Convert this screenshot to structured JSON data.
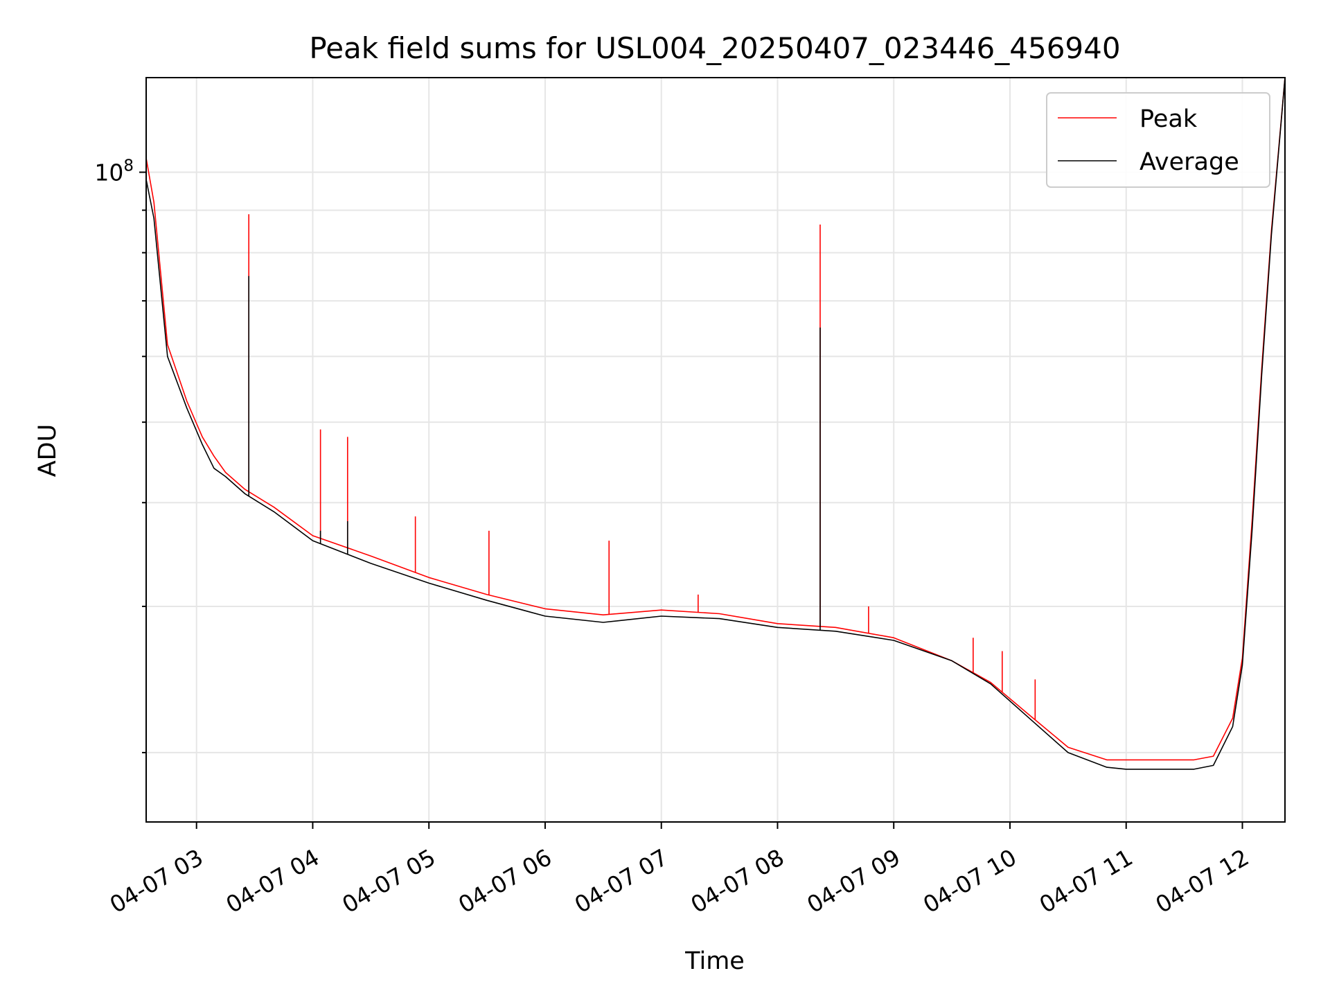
{
  "chart_data": {
    "type": "line",
    "title": "Peak field sums for USL004_20250407_023446_456940",
    "xlabel": "Time",
    "ylabel": "ADU",
    "y_scale": "log",
    "x_tick_labels": [
      "04-07 03",
      "04-07 04",
      "04-07 05",
      "04-07 06",
      "04-07 07",
      "04-07 08",
      "04-07 09",
      "04-07 10",
      "04-07 11",
      "04-07 12"
    ],
    "x_ticks": [
      "2025-04-07 03:00",
      "2025-04-07 04:00",
      "2025-04-07 05:00",
      "2025-04-07 06:00",
      "2025-04-07 07:00",
      "2025-04-07 08:00",
      "2025-04-07 09:00",
      "2025-04-07 10:00",
      "2025-04-07 11:00",
      "2025-04-07 12:00"
    ],
    "y_major_ticks": [
      {
        "value": 100000000,
        "base": "10",
        "exp": "8"
      }
    ],
    "y_minor_ticks": [
      20000000,
      30000000,
      40000000,
      50000000,
      60000000,
      70000000,
      80000000,
      90000000
    ],
    "xlim": [
      "2025-04-07 02:34",
      "2025-04-07 12:22"
    ],
    "ylim": [
      16500000,
      130000000
    ],
    "grid": true,
    "legend_position": "top-right",
    "series": [
      {
        "name": "Peak",
        "color": "#ff0000",
        "x": [
          "2025-04-07 02:34",
          "2025-04-07 02:38",
          "2025-04-07 02:45",
          "2025-04-07 02:55",
          "2025-04-07 03:03",
          "2025-04-07 03:09",
          "2025-04-07 03:15",
          "2025-04-07 03:25",
          "2025-04-07 03:40",
          "2025-04-07 04:00",
          "2025-04-07 04:30",
          "2025-04-07 05:00",
          "2025-04-07 05:30",
          "2025-04-07 06:00",
          "2025-04-07 06:30",
          "2025-04-07 07:00",
          "2025-04-07 07:30",
          "2025-04-07 08:00",
          "2025-04-07 08:30",
          "2025-04-07 09:00",
          "2025-04-07 09:30",
          "2025-04-07 09:50",
          "2025-04-07 10:10",
          "2025-04-07 10:30",
          "2025-04-07 10:50",
          "2025-04-07 11:00",
          "2025-04-07 11:20",
          "2025-04-07 11:35",
          "2025-04-07 11:45",
          "2025-04-07 11:55",
          "2025-04-07 12:00",
          "2025-04-07 12:05",
          "2025-04-07 12:10",
          "2025-04-07 12:15",
          "2025-04-07 12:22"
        ],
        "y": [
          104000000,
          92000000,
          62000000,
          53000000,
          48000000,
          45500000,
          43500000,
          41500000,
          39500000,
          36500000,
          34500000,
          32500000,
          31000000,
          29800000,
          29300000,
          29700000,
          29400000,
          28600000,
          28300000,
          27500000,
          25800000,
          24300000,
          22200000,
          20300000,
          19600000,
          19600000,
          19600000,
          19600000,
          19800000,
          22000000,
          26000000,
          38000000,
          58000000,
          85000000,
          130000000
        ],
        "spikes": [
          {
            "x": "2025-04-07 02:34",
            "y": 108000000
          },
          {
            "x": "2025-04-07 03:27",
            "y": 89000000
          },
          {
            "x": "2025-04-07 04:04",
            "y": 49000000
          },
          {
            "x": "2025-04-07 04:18",
            "y": 48000000
          },
          {
            "x": "2025-04-07 04:53",
            "y": 38500000
          },
          {
            "x": "2025-04-07 05:31",
            "y": 37000000
          },
          {
            "x": "2025-04-07 06:33",
            "y": 36000000
          },
          {
            "x": "2025-04-07 07:19",
            "y": 31000000
          },
          {
            "x": "2025-04-07 08:22",
            "y": 86500000
          },
          {
            "x": "2025-04-07 08:47",
            "y": 30000000
          },
          {
            "x": "2025-04-07 09:41",
            "y": 27500000
          },
          {
            "x": "2025-04-07 09:56",
            "y": 26500000
          },
          {
            "x": "2025-04-07 10:13",
            "y": 24500000
          }
        ]
      },
      {
        "name": "Average",
        "color": "#000000",
        "x": [
          "2025-04-07 02:34",
          "2025-04-07 02:38",
          "2025-04-07 02:45",
          "2025-04-07 02:55",
          "2025-04-07 03:03",
          "2025-04-07 03:09",
          "2025-04-07 03:15",
          "2025-04-07 03:25",
          "2025-04-07 03:40",
          "2025-04-07 04:00",
          "2025-04-07 04:30",
          "2025-04-07 05:00",
          "2025-04-07 05:30",
          "2025-04-07 06:00",
          "2025-04-07 06:30",
          "2025-04-07 07:00",
          "2025-04-07 07:30",
          "2025-04-07 08:00",
          "2025-04-07 08:30",
          "2025-04-07 09:00",
          "2025-04-07 09:30",
          "2025-04-07 09:50",
          "2025-04-07 10:10",
          "2025-04-07 10:30",
          "2025-04-07 10:50",
          "2025-04-07 11:00",
          "2025-04-07 11:20",
          "2025-04-07 11:35",
          "2025-04-07 11:45",
          "2025-04-07 11:55",
          "2025-04-07 12:00",
          "2025-04-07 12:05",
          "2025-04-07 12:10",
          "2025-04-07 12:15",
          "2025-04-07 12:22"
        ],
        "y": [
          98000000,
          88000000,
          60000000,
          52000000,
          47000000,
          44000000,
          43000000,
          41000000,
          39000000,
          36000000,
          33800000,
          32000000,
          30500000,
          29200000,
          28700000,
          29200000,
          29000000,
          28300000,
          28000000,
          27300000,
          25800000,
          24200000,
          22000000,
          20000000,
          19200000,
          19100000,
          19100000,
          19100000,
          19300000,
          21500000,
          25500000,
          37000000,
          57000000,
          84000000,
          130000000
        ],
        "spikes": [
          {
            "x": "2025-04-07 03:27",
            "y": 75000000
          },
          {
            "x": "2025-04-07 04:04",
            "y": 37000000
          },
          {
            "x": "2025-04-07 04:18",
            "y": 38000000
          },
          {
            "x": "2025-04-07 08:22",
            "y": 65000000
          }
        ]
      }
    ]
  }
}
